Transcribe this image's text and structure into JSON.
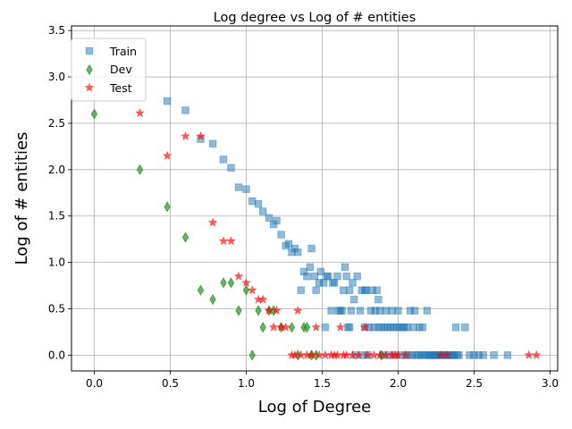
{
  "chart_data": {
    "type": "scatter",
    "title": "Log degree vs Log of # entities",
    "xlabel": "Log of Degree",
    "ylabel": "Log of # entities",
    "xlim": [
      -0.15,
      3.05
    ],
    "ylim": [
      -0.17,
      3.55
    ],
    "xticks": [
      0.0,
      0.5,
      1.0,
      1.5,
      2.0,
      2.5,
      3.0
    ],
    "yticks": [
      0.0,
      0.5,
      1.0,
      1.5,
      2.0,
      2.5,
      3.0,
      3.5
    ],
    "xtick_labels": [
      "0.0",
      "0.5",
      "1.0",
      "1.5",
      "2.0",
      "2.5",
      "3.0"
    ],
    "ytick_labels": [
      "0.0",
      "0.5",
      "1.0",
      "1.5",
      "2.0",
      "2.5",
      "3.0",
      "3.5"
    ],
    "grid": true,
    "legend_position": "top-left",
    "series": [
      {
        "name": "Train",
        "marker": "square",
        "color": "#1f77b4",
        "points": [
          [
            0.48,
            2.74
          ],
          [
            0.6,
            2.64
          ],
          [
            0.7,
            2.33
          ],
          [
            0.78,
            2.28
          ],
          [
            0.85,
            2.11
          ],
          [
            0.9,
            2.02
          ],
          [
            0.95,
            1.81
          ],
          [
            1.0,
            1.79
          ],
          [
            1.04,
            1.66
          ],
          [
            1.08,
            1.63
          ],
          [
            1.11,
            1.55
          ],
          [
            1.15,
            1.48
          ],
          [
            1.18,
            1.41
          ],
          [
            1.2,
            1.45
          ],
          [
            1.23,
            1.3
          ],
          [
            1.26,
            1.18
          ],
          [
            1.28,
            1.2
          ],
          [
            1.3,
            1.11
          ],
          [
            1.32,
            1.15
          ],
          [
            1.34,
            1.11
          ],
          [
            1.36,
            0.7
          ],
          [
            1.38,
            0.9
          ],
          [
            1.4,
            0.85
          ],
          [
            1.42,
            0.95
          ],
          [
            1.43,
            1.15
          ],
          [
            1.45,
            0.85
          ],
          [
            1.46,
            0.7
          ],
          [
            1.48,
            0.78
          ],
          [
            1.49,
            0.9
          ],
          [
            1.51,
            0.78
          ],
          [
            1.52,
            0.3
          ],
          [
            1.53,
            0.85
          ],
          [
            1.54,
            0.85
          ],
          [
            1.56,
            0.48
          ],
          [
            1.57,
            0.78
          ],
          [
            1.58,
            0.78
          ],
          [
            1.6,
            0.85
          ],
          [
            1.61,
            0.48
          ],
          [
            1.62,
            0.48
          ],
          [
            1.63,
            0.48
          ],
          [
            1.64,
            0.7
          ],
          [
            1.65,
            0.95
          ],
          [
            1.66,
            0.85
          ],
          [
            1.67,
            0.3
          ],
          [
            1.68,
            0.3
          ],
          [
            1.68,
            0.7
          ],
          [
            1.69,
            0.48
          ],
          [
            1.7,
            0.78
          ],
          [
            1.71,
            0.6
          ],
          [
            1.72,
            0.0
          ],
          [
            1.73,
            0.85
          ],
          [
            1.75,
            0.48
          ],
          [
            1.76,
            0.7
          ],
          [
            1.77,
            0.0
          ],
          [
            1.78,
            0.7
          ],
          [
            1.78,
            0.3
          ],
          [
            1.79,
            0.7
          ],
          [
            1.8,
            0.0
          ],
          [
            1.81,
            0.3
          ],
          [
            1.82,
            0.48
          ],
          [
            1.83,
            0.7
          ],
          [
            1.84,
            0.3
          ],
          [
            1.85,
            0.48
          ],
          [
            1.86,
            0.7
          ],
          [
            1.87,
            0.3
          ],
          [
            1.87,
            0.6
          ],
          [
            1.88,
            0.48
          ],
          [
            1.89,
            0.3
          ],
          [
            1.9,
            0.0
          ],
          [
            1.91,
            0.3
          ],
          [
            1.92,
            0.48
          ],
          [
            1.93,
            0.3
          ],
          [
            1.94,
            0.0
          ],
          [
            1.95,
            0.3
          ],
          [
            1.96,
            0.48
          ],
          [
            1.97,
            0.3
          ],
          [
            1.98,
            0.0
          ],
          [
            1.99,
            0.3
          ],
          [
            2.0,
            0.48
          ],
          [
            2.01,
            0.3
          ],
          [
            2.02,
            0.0
          ],
          [
            2.03,
            0.3
          ],
          [
            2.04,
            0.3
          ],
          [
            2.05,
            0.0
          ],
          [
            2.06,
            0.3
          ],
          [
            2.07,
            0.0
          ],
          [
            2.08,
            0.48
          ],
          [
            2.09,
            0.0
          ],
          [
            2.1,
            0.3
          ],
          [
            2.11,
            0.48
          ],
          [
            2.12,
            0.0
          ],
          [
            2.13,
            0.0
          ],
          [
            2.14,
            0.3
          ],
          [
            2.15,
            0.0
          ],
          [
            2.16,
            0.3
          ],
          [
            2.17,
            0.0
          ],
          [
            2.18,
            0.0
          ],
          [
            2.19,
            0.48
          ],
          [
            2.2,
            0.0
          ],
          [
            2.21,
            0.0
          ],
          [
            2.22,
            0.0
          ],
          [
            2.23,
            0.0
          ],
          [
            2.24,
            0.0
          ],
          [
            2.25,
            0.0
          ],
          [
            2.26,
            0.0
          ],
          [
            2.27,
            0.0
          ],
          [
            2.28,
            0.0
          ],
          [
            2.29,
            0.0
          ],
          [
            2.3,
            0.0
          ],
          [
            2.31,
            0.0
          ],
          [
            2.32,
            0.0
          ],
          [
            2.33,
            0.0
          ],
          [
            2.34,
            0.0
          ],
          [
            2.35,
            0.0
          ],
          [
            2.36,
            0.0
          ],
          [
            2.37,
            0.0
          ],
          [
            2.38,
            0.3
          ],
          [
            2.39,
            0.0
          ],
          [
            2.4,
            0.0
          ],
          [
            2.44,
            0.3
          ],
          [
            2.47,
            0.0
          ],
          [
            2.5,
            0.0
          ],
          [
            2.53,
            0.0
          ],
          [
            2.56,
            0.0
          ],
          [
            2.63,
            0.0
          ],
          [
            2.72,
            0.0
          ]
        ]
      },
      {
        "name": "Dev",
        "marker": "thin_diamond",
        "color": "#2ca02c",
        "points": [
          [
            0.0,
            2.6
          ],
          [
            0.3,
            2.0
          ],
          [
            0.48,
            1.6
          ],
          [
            0.6,
            1.27
          ],
          [
            0.7,
            0.7
          ],
          [
            0.78,
            0.6
          ],
          [
            0.85,
            0.78
          ],
          [
            0.9,
            0.78
          ],
          [
            0.95,
            0.48
          ],
          [
            1.0,
            0.7
          ],
          [
            1.04,
            0.0
          ],
          [
            1.08,
            0.48
          ],
          [
            1.11,
            0.3
          ],
          [
            1.15,
            0.48
          ],
          [
            1.18,
            0.48
          ],
          [
            1.23,
            0.3
          ],
          [
            1.3,
            0.3
          ],
          [
            1.34,
            0.0
          ],
          [
            1.38,
            0.3
          ],
          [
            1.4,
            0.3
          ],
          [
            1.43,
            0.0
          ],
          [
            1.46,
            0.0
          ],
          [
            1.89,
            0.0
          ]
        ]
      },
      {
        "name": "Test",
        "marker": "star",
        "color": "#ff0000",
        "points": [
          [
            0.3,
            2.61
          ],
          [
            0.48,
            2.15
          ],
          [
            0.6,
            2.36
          ],
          [
            0.7,
            2.36
          ],
          [
            0.78,
            1.43
          ],
          [
            0.85,
            1.23
          ],
          [
            0.9,
            1.23
          ],
          [
            0.95,
            0.85
          ],
          [
            1.0,
            0.78
          ],
          [
            1.04,
            0.7
          ],
          [
            1.08,
            0.6
          ],
          [
            1.11,
            0.6
          ],
          [
            1.15,
            0.48
          ],
          [
            1.18,
            0.3
          ],
          [
            1.2,
            0.48
          ],
          [
            1.23,
            0.3
          ],
          [
            1.26,
            0.3
          ],
          [
            1.3,
            0.0
          ],
          [
            1.32,
            0.0
          ],
          [
            1.34,
            0.48
          ],
          [
            1.36,
            0.0
          ],
          [
            1.4,
            0.0
          ],
          [
            1.43,
            0.0
          ],
          [
            1.46,
            0.3
          ],
          [
            1.48,
            0.0
          ],
          [
            1.52,
            0.0
          ],
          [
            1.56,
            0.0
          ],
          [
            1.58,
            0.0
          ],
          [
            1.6,
            0.0
          ],
          [
            1.62,
            0.3
          ],
          [
            1.64,
            0.0
          ],
          [
            1.66,
            0.0
          ],
          [
            1.7,
            0.0
          ],
          [
            1.74,
            0.0
          ],
          [
            1.78,
            0.3
          ],
          [
            1.8,
            0.0
          ],
          [
            1.84,
            0.0
          ],
          [
            1.88,
            0.0
          ],
          [
            1.92,
            0.0
          ],
          [
            1.96,
            0.0
          ],
          [
            1.98,
            0.0
          ],
          [
            2.0,
            0.0
          ],
          [
            2.05,
            0.0
          ],
          [
            2.28,
            0.0
          ],
          [
            2.32,
            0.0
          ],
          [
            2.86,
            0.0
          ],
          [
            2.91,
            0.0
          ]
        ]
      }
    ]
  }
}
